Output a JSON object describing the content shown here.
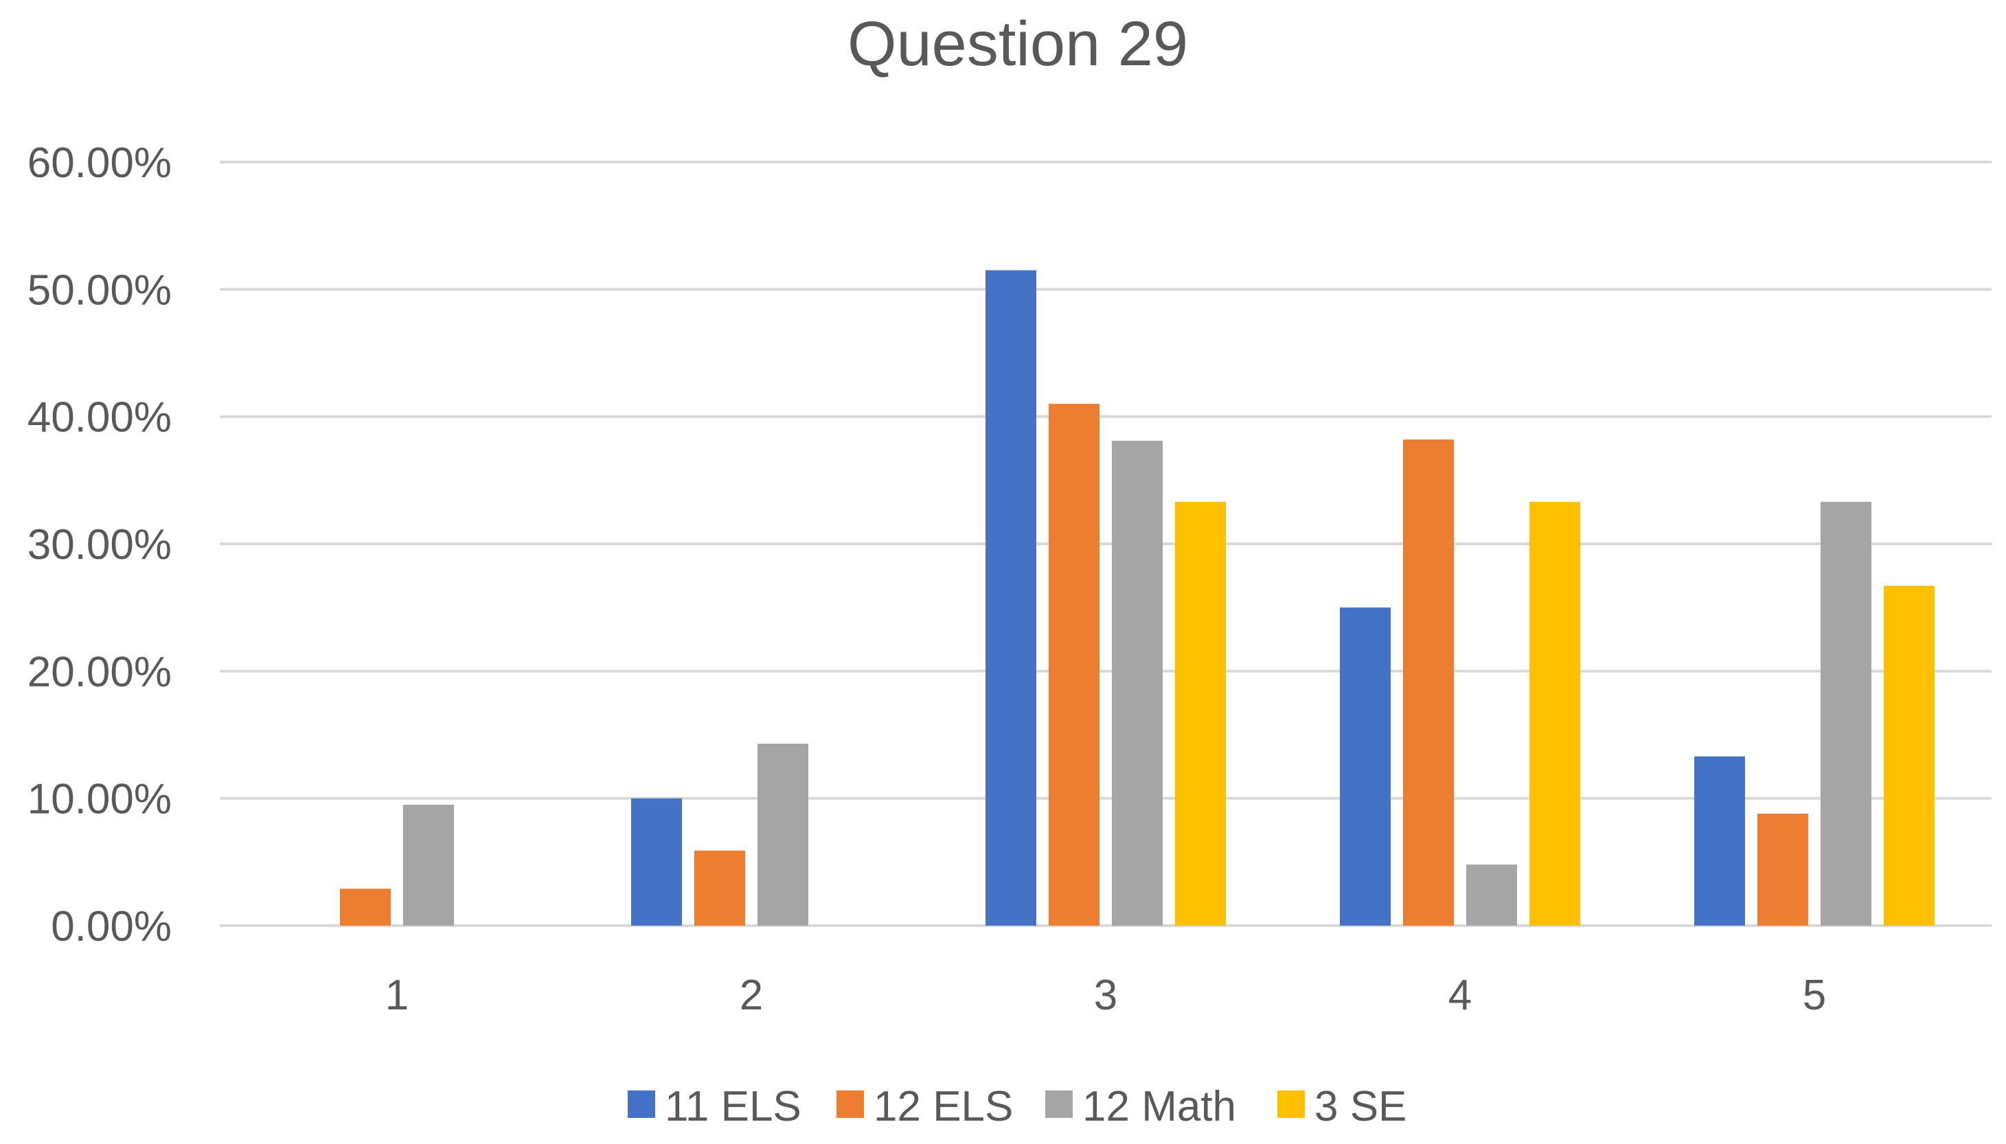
{
  "chart_data": {
    "type": "bar",
    "title": "Question 29",
    "xlabel": "",
    "ylabel": "",
    "categories": [
      "1",
      "2",
      "3",
      "4",
      "5"
    ],
    "ylim": [
      0,
      0.6
    ],
    "yticks": [
      0,
      0.1,
      0.2,
      0.3,
      0.4,
      0.5,
      0.6
    ],
    "ytick_labels": [
      "0.00%",
      "10.00%",
      "20.00%",
      "30.00%",
      "40.00%",
      "50.00%",
      "60.00%"
    ],
    "grid": true,
    "legend_position": "bottom",
    "series": [
      {
        "name": "11 ELS",
        "color": "#4472C4",
        "values": [
          0.0,
          0.1,
          0.515,
          0.25,
          0.133
        ]
      },
      {
        "name": "12 ELS",
        "color": "#ED7D31",
        "values": [
          0.029,
          0.059,
          0.41,
          0.382,
          0.088
        ]
      },
      {
        "name": "12 Math",
        "color": "#A5A5A5",
        "values": [
          0.095,
          0.143,
          0.381,
          0.048,
          0.333
        ]
      },
      {
        "name": "3 SE",
        "color": "#FFC000",
        "values": [
          0.0,
          0.0,
          0.333,
          0.333,
          0.267
        ]
      }
    ]
  }
}
